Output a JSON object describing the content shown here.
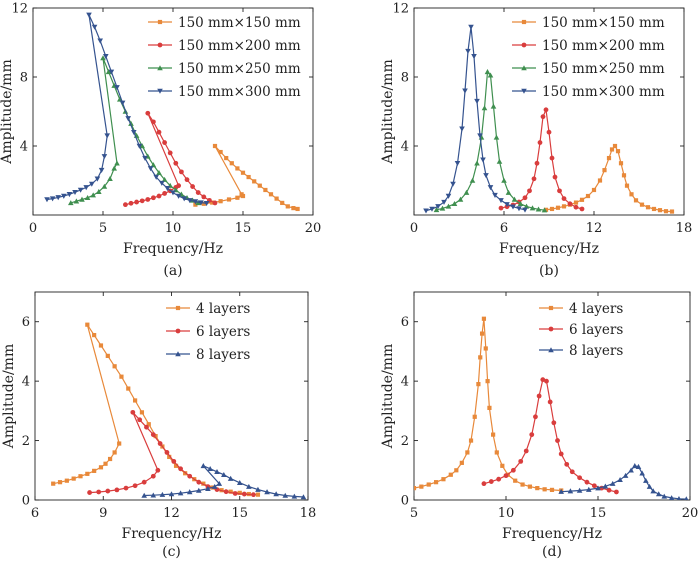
{
  "chart_data": [
    {
      "id": "a",
      "type": "line",
      "panel_label": "(a)",
      "xlabel": "Frequency/Hz",
      "ylabel": "Amplitude/mm",
      "xlim": [
        0,
        20
      ],
      "ylim": [
        0,
        12
      ],
      "xticks": [
        0,
        5,
        10,
        15,
        20
      ],
      "yticks": [
        4,
        8,
        12
      ],
      "xtick_labels": [
        "0",
        "5",
        "10",
        "15",
        "20"
      ],
      "ytick_labels": [
        "4",
        "8",
        "12"
      ],
      "grid": false,
      "legend_position": "top-right",
      "series": [
        {
          "name": "150 mm×150 mm",
          "color": "#e8893a",
          "marker": "square",
          "x": [
            11.6,
            12.2,
            12.8,
            13.4,
            14.0,
            14.6,
            15.0,
            14.9,
            13.0,
            13.4,
            13.8,
            14.2,
            14.6,
            15.0,
            15.4,
            15.8,
            16.2,
            16.6,
            17.0,
            17.4,
            17.8,
            18.2,
            18.6,
            18.9
          ],
          "y": [
            0.6,
            0.65,
            0.72,
            0.8,
            0.9,
            1.0,
            1.1,
            1.2,
            4.0,
            3.65,
            3.3,
            3.0,
            2.7,
            2.45,
            2.2,
            1.95,
            1.7,
            1.45,
            1.2,
            0.95,
            0.7,
            0.5,
            0.4,
            0.35
          ]
        },
        {
          "name": "150 mm×200 mm",
          "color": "#d93d3d",
          "marker": "circle",
          "x": [
            6.6,
            7.0,
            7.4,
            7.8,
            8.2,
            8.6,
            9.0,
            9.4,
            9.8,
            10.2,
            10.4,
            8.2,
            8.6,
            9.0,
            9.4,
            9.8,
            10.2,
            10.6,
            11.0,
            11.4,
            11.8,
            12.2,
            12.6,
            13.0
          ],
          "y": [
            0.6,
            0.68,
            0.75,
            0.82,
            0.9,
            1.0,
            1.1,
            1.25,
            1.4,
            1.6,
            1.7,
            5.9,
            5.4,
            4.8,
            4.2,
            3.6,
            3.0,
            2.5,
            2.05,
            1.65,
            1.3,
            1.05,
            0.85,
            0.7
          ]
        },
        {
          "name": "150 mm×250 mm",
          "color": "#3f8f4f",
          "marker": "triangle",
          "x": [
            2.7,
            3.1,
            3.5,
            3.9,
            4.3,
            4.7,
            5.1,
            5.5,
            5.8,
            6.0,
            5.0,
            5.4,
            5.8,
            6.2,
            6.6,
            7.0,
            7.4,
            7.8,
            8.2,
            8.6,
            9.0,
            9.4,
            9.8,
            10.2,
            10.6,
            11.0,
            11.4,
            11.8
          ],
          "y": [
            0.7,
            0.8,
            0.9,
            1.0,
            1.15,
            1.35,
            1.65,
            2.1,
            2.7,
            3.0,
            9.1,
            8.3,
            7.5,
            6.7,
            6.0,
            5.3,
            4.6,
            4.0,
            3.4,
            2.9,
            2.45,
            2.05,
            1.7,
            1.45,
            1.2,
            1.0,
            0.85,
            0.7
          ]
        },
        {
          "name": "150 mm×300 mm",
          "color": "#35538f",
          "marker": "triangle-down",
          "x": [
            1.0,
            1.4,
            1.8,
            2.2,
            2.6,
            3.0,
            3.4,
            3.8,
            4.2,
            4.6,
            4.9,
            5.1,
            5.3,
            4.0,
            4.4,
            4.8,
            5.2,
            5.6,
            6.0,
            6.4,
            6.8,
            7.2,
            7.6,
            8.0,
            8.4,
            8.8,
            9.2,
            9.6,
            10.0,
            10.4,
            10.8,
            11.2,
            11.6,
            12.0,
            12.4
          ],
          "y": [
            0.9,
            0.95,
            1.02,
            1.1,
            1.2,
            1.32,
            1.45,
            1.6,
            1.8,
            2.1,
            2.6,
            3.4,
            4.6,
            11.6,
            10.9,
            10.1,
            9.2,
            8.3,
            7.4,
            6.5,
            5.6,
            4.8,
            4.0,
            3.3,
            2.7,
            2.2,
            1.85,
            1.55,
            1.3,
            1.1,
            0.95,
            0.85,
            0.78,
            0.72,
            0.68
          ]
        }
      ]
    },
    {
      "id": "b",
      "type": "line",
      "panel_label": "(b)",
      "xlabel": "Frequency/Hz",
      "ylabel": "Amplitude/mm",
      "xlim": [
        0,
        18
      ],
      "ylim": [
        0,
        12
      ],
      "xticks": [
        0,
        6,
        12,
        18
      ],
      "yticks": [
        4,
        8,
        12
      ],
      "xtick_labels": [
        "0",
        "6",
        "12",
        "18"
      ],
      "ytick_labels": [
        "4",
        "8",
        "12"
      ],
      "grid": false,
      "legend_position": "top-right",
      "series": [
        {
          "name": "150 mm×150 mm",
          "color": "#e8893a",
          "marker": "square",
          "x": [
            8.8,
            9.2,
            9.6,
            10.0,
            10.4,
            10.8,
            11.2,
            11.6,
            12.0,
            12.4,
            12.7,
            13.0,
            13.2,
            13.4,
            13.6,
            13.8,
            14.0,
            14.2,
            14.5,
            14.8,
            15.2,
            15.6,
            16.0,
            16.4,
            16.8,
            17.2
          ],
          "y": [
            0.3,
            0.35,
            0.42,
            0.5,
            0.6,
            0.72,
            0.88,
            1.1,
            1.45,
            2.0,
            2.6,
            3.3,
            3.8,
            4.0,
            3.7,
            3.0,
            2.3,
            1.7,
            1.2,
            0.85,
            0.6,
            0.45,
            0.35,
            0.28,
            0.22,
            0.2
          ]
        },
        {
          "name": "150 mm×200 mm",
          "color": "#d93d3d",
          "marker": "circle",
          "x": [
            5.8,
            6.2,
            6.6,
            7.0,
            7.4,
            7.7,
            8.0,
            8.2,
            8.4,
            8.6,
            8.8,
            9.0,
            9.2,
            9.4,
            9.7,
            10.0,
            10.4,
            10.8,
            11.2
          ],
          "y": [
            0.4,
            0.48,
            0.58,
            0.75,
            1.0,
            1.4,
            2.1,
            3.0,
            4.2,
            5.7,
            6.1,
            4.8,
            3.3,
            2.2,
            1.4,
            0.95,
            0.65,
            0.45,
            0.35
          ]
        },
        {
          "name": "150 mm×250 mm",
          "color": "#3f8f4f",
          "marker": "triangle",
          "x": [
            1.5,
            1.9,
            2.3,
            2.7,
            3.1,
            3.5,
            3.9,
            4.2,
            4.5,
            4.7,
            4.9,
            5.1,
            5.3,
            5.5,
            5.7,
            6.0,
            6.3,
            6.7,
            7.1,
            7.5,
            7.9,
            8.3,
            8.7
          ],
          "y": [
            0.3,
            0.38,
            0.5,
            0.65,
            0.9,
            1.3,
            2.0,
            3.0,
            4.5,
            6.2,
            8.3,
            8.1,
            6.3,
            4.5,
            3.1,
            2.0,
            1.3,
            0.9,
            0.65,
            0.5,
            0.4,
            0.33,
            0.28
          ]
        },
        {
          "name": "150 mm×300 mm",
          "color": "#35538f",
          "marker": "triangle-down",
          "x": [
            0.8,
            1.2,
            1.6,
            2.0,
            2.3,
            2.6,
            2.9,
            3.2,
            3.4,
            3.6,
            3.8,
            4.0,
            4.2,
            4.4,
            4.6,
            4.8,
            5.1,
            5.4,
            5.8,
            6.2,
            6.6,
            7.0,
            7.4
          ],
          "y": [
            0.25,
            0.35,
            0.5,
            0.75,
            1.1,
            1.8,
            3.0,
            5.0,
            7.2,
            9.5,
            10.9,
            9.2,
            6.6,
            4.6,
            3.2,
            2.3,
            1.6,
            1.15,
            0.85,
            0.62,
            0.48,
            0.38,
            0.3
          ]
        }
      ]
    },
    {
      "id": "c",
      "type": "line",
      "panel_label": "(c)",
      "xlabel": "Frequency/Hz",
      "ylabel": "Amplitude/mm",
      "xlim": [
        6,
        18
      ],
      "ylim": [
        0,
        7
      ],
      "xticks": [
        6,
        9,
        12,
        15,
        18
      ],
      "yticks": [
        0,
        2,
        4,
        6
      ],
      "xtick_labels": [
        "6",
        "9",
        "12",
        "15",
        "18"
      ],
      "ytick_labels": [
        "0",
        "2",
        "4",
        "6"
      ],
      "grid": false,
      "legend_position": "top-right",
      "series": [
        {
          "name": "4 layers",
          "color": "#e8893a",
          "marker": "square",
          "x": [
            6.8,
            7.1,
            7.4,
            7.7,
            8.0,
            8.3,
            8.6,
            8.9,
            9.1,
            9.3,
            9.5,
            9.7,
            8.3,
            8.6,
            8.9,
            9.2,
            9.5,
            9.8,
            10.1,
            10.4,
            10.7,
            11.0,
            11.3,
            11.6,
            11.9,
            12.2,
            12.6,
            13.0,
            13.4,
            13.8,
            14.2,
            14.6,
            15.0,
            15.4,
            15.8
          ],
          "y": [
            0.55,
            0.6,
            0.65,
            0.72,
            0.8,
            0.88,
            0.98,
            1.1,
            1.22,
            1.38,
            1.6,
            1.9,
            5.9,
            5.55,
            5.2,
            4.85,
            4.5,
            4.15,
            3.75,
            3.35,
            2.95,
            2.55,
            2.15,
            1.8,
            1.45,
            1.15,
            0.9,
            0.7,
            0.55,
            0.42,
            0.33,
            0.28,
            0.24,
            0.2,
            0.18
          ]
        },
        {
          "name": "6 layers",
          "color": "#d93d3d",
          "marker": "circle",
          "x": [
            8.4,
            8.8,
            9.2,
            9.6,
            10.0,
            10.4,
            10.8,
            11.2,
            11.4,
            10.3,
            10.6,
            10.9,
            11.2,
            11.5,
            11.8,
            12.1,
            12.4,
            12.8,
            13.2,
            13.6,
            14.0,
            14.4,
            14.8,
            15.2,
            15.6
          ],
          "y": [
            0.25,
            0.27,
            0.3,
            0.34,
            0.4,
            0.48,
            0.6,
            0.8,
            1.0,
            2.95,
            2.7,
            2.45,
            2.2,
            1.9,
            1.6,
            1.3,
            1.05,
            0.8,
            0.6,
            0.45,
            0.35,
            0.28,
            0.22,
            0.2,
            0.18
          ]
        },
        {
          "name": "8 layers",
          "color": "#35538f",
          "marker": "triangle",
          "x": [
            10.8,
            11.2,
            11.6,
            12.0,
            12.4,
            12.8,
            13.2,
            13.6,
            13.9,
            14.1,
            13.4,
            13.7,
            14.0,
            14.3,
            14.6,
            15.0,
            15.4,
            15.8,
            16.2,
            16.6,
            17.0,
            17.4,
            17.8
          ],
          "y": [
            0.15,
            0.16,
            0.18,
            0.2,
            0.23,
            0.27,
            0.32,
            0.38,
            0.45,
            0.55,
            1.15,
            1.05,
            0.95,
            0.85,
            0.72,
            0.58,
            0.45,
            0.35,
            0.27,
            0.2,
            0.15,
            0.12,
            0.1
          ]
        }
      ]
    },
    {
      "id": "d",
      "type": "line",
      "panel_label": "(d)",
      "xlabel": "Frequency/Hz",
      "ylabel": "Amplitude/mm",
      "xlim": [
        5,
        20
      ],
      "ylim": [
        0,
        7
      ],
      "xticks": [
        5,
        10,
        15,
        20
      ],
      "yticks": [
        0,
        2,
        4,
        6
      ],
      "xtick_labels": [
        "5",
        "10",
        "15",
        "20"
      ],
      "ytick_labels": [
        "0",
        "2",
        "4",
        "6"
      ],
      "grid": false,
      "legend_position": "top-right",
      "series": [
        {
          "name": "4 layers",
          "color": "#e8893a",
          "marker": "square",
          "x": [
            5.0,
            5.4,
            5.8,
            6.2,
            6.6,
            7.0,
            7.3,
            7.6,
            7.9,
            8.1,
            8.3,
            8.5,
            8.6,
            8.7,
            8.8,
            8.9,
            9.0,
            9.1,
            9.3,
            9.5,
            9.8,
            10.1,
            10.5,
            10.9,
            11.3,
            11.7,
            12.1,
            12.5,
            13.0
          ],
          "y": [
            0.4,
            0.45,
            0.52,
            0.6,
            0.7,
            0.85,
            1.0,
            1.25,
            1.6,
            2.0,
            2.8,
            3.9,
            4.8,
            5.6,
            6.1,
            5.1,
            4.0,
            3.1,
            2.2,
            1.6,
            1.15,
            0.85,
            0.65,
            0.52,
            0.45,
            0.4,
            0.36,
            0.34,
            0.32
          ]
        },
        {
          "name": "6 layers",
          "color": "#d93d3d",
          "marker": "circle",
          "x": [
            8.8,
            9.2,
            9.6,
            10.0,
            10.4,
            10.8,
            11.1,
            11.4,
            11.6,
            11.8,
            12.0,
            12.2,
            12.4,
            12.6,
            12.8,
            13.0,
            13.3,
            13.6,
            14.0,
            14.4,
            14.8,
            15.2,
            15.6,
            16.0
          ],
          "y": [
            0.55,
            0.62,
            0.7,
            0.82,
            1.0,
            1.3,
            1.65,
            2.2,
            2.8,
            3.5,
            4.05,
            4.0,
            3.3,
            2.6,
            2.0,
            1.55,
            1.2,
            0.95,
            0.75,
            0.6,
            0.48,
            0.4,
            0.33,
            0.27
          ]
        },
        {
          "name": "8 layers",
          "color": "#35538f",
          "marker": "triangle",
          "x": [
            13.0,
            13.5,
            14.0,
            14.5,
            15.0,
            15.4,
            15.8,
            16.2,
            16.5,
            16.8,
            17.0,
            17.2,
            17.4,
            17.6,
            17.8,
            18.0,
            18.3,
            18.6,
            19.0,
            19.4,
            19.8
          ],
          "y": [
            0.28,
            0.3,
            0.32,
            0.35,
            0.4,
            0.46,
            0.55,
            0.68,
            0.82,
            1.0,
            1.15,
            1.12,
            0.9,
            0.65,
            0.45,
            0.3,
            0.2,
            0.12,
            0.07,
            0.04,
            0.03
          ]
        }
      ]
    }
  ]
}
